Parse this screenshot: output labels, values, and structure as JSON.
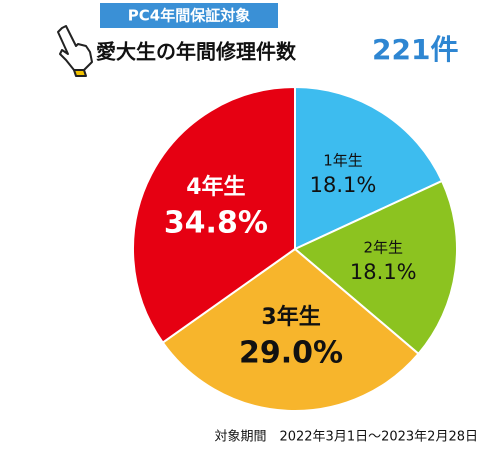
{
  "chart_data": {
    "type": "pie",
    "badge": "PC4年間保証対象",
    "title": "愛大生の年間修理件数",
    "total": "221件",
    "footnote": "対象期間　2022年3月1日～2023年2月28日",
    "categories": [
      "1年生",
      "2年生",
      "3年生",
      "4年生"
    ],
    "values": [
      18.1,
      18.1,
      29.0,
      34.8
    ],
    "value_labels": [
      "18.1%",
      "18.1%",
      "29.0%",
      "34.8%"
    ],
    "colors": [
      "#3dbcef",
      "#8cc320",
      "#f7b52c",
      "#e60012"
    ]
  }
}
